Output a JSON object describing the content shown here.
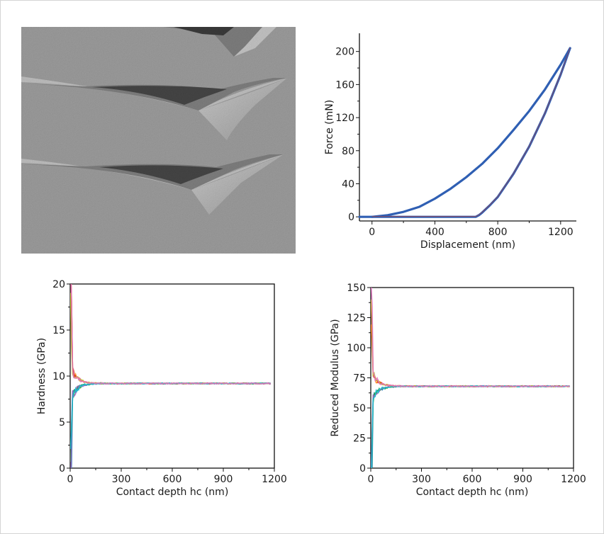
{
  "chart_data": [
    {
      "type": "line",
      "title": "",
      "xlabel": "Displacement (nm)",
      "ylabel": "Force (mN)",
      "xlim": [
        -80,
        1300
      ],
      "ylim": [
        -5,
        222
      ],
      "xticks": [
        0,
        400,
        800,
        1200
      ],
      "yticks": [
        0,
        40,
        80,
        120,
        160,
        200
      ],
      "grid": false,
      "legend": "none",
      "series": [
        {
          "color": "#2f5fb3",
          "x": [
            -80,
            0,
            100,
            200,
            300,
            400,
            500,
            600,
            700,
            800,
            900,
            1000,
            1100,
            1200,
            1260
          ],
          "y": [
            0,
            0,
            2,
            6,
            12,
            22,
            34,
            48,
            64,
            83,
            105,
            128,
            154,
            184,
            204
          ]
        },
        {
          "color": "#2f5fb3",
          "x": [
            1260,
            1200,
            1100,
            1000,
            900,
            800,
            750,
            700,
            680,
            660,
            600,
            500,
            400,
            300,
            200,
            100,
            0
          ],
          "y": [
            204,
            172,
            125,
            85,
            52,
            24,
            14,
            5,
            2,
            0,
            0,
            0,
            0,
            0,
            0,
            0,
            0
          ]
        }
      ]
    },
    {
      "type": "scatter",
      "title": "",
      "xlabel": "Contact depth hc (nm)",
      "ylabel": "Hardness (GPa)",
      "xlim": [
        0,
        1200
      ],
      "ylim": [
        0,
        20
      ],
      "xticks": [
        0,
        300,
        600,
        900,
        1200
      ],
      "yticks": [
        0,
        5,
        10,
        15,
        20
      ],
      "grid": false,
      "legend": "none",
      "plateau": 9.2,
      "x_end": 1180,
      "series_colors": [
        "#1f77b4",
        "#ff7f0e",
        "#2ca02c",
        "#d62728",
        "#9467bd",
        "#bcbd22",
        "#17becf",
        "#e377c2"
      ]
    },
    {
      "type": "scatter",
      "title": "",
      "xlabel": "Contact depth hc (nm)",
      "ylabel": "Reduced Modulus (GPa)",
      "xlim": [
        0,
        1200
      ],
      "ylim": [
        0,
        150
      ],
      "xticks": [
        0,
        300,
        600,
        900,
        1200
      ],
      "yticks": [
        0,
        25,
        50,
        75,
        100,
        125,
        150
      ],
      "grid": false,
      "legend": "none",
      "plateau": 68,
      "x_end": 1180,
      "series_colors": [
        "#1f77b4",
        "#ff7f0e",
        "#2ca02c",
        "#d62728",
        "#9467bd",
        "#bcbd22",
        "#17becf",
        "#e377c2"
      ]
    }
  ]
}
